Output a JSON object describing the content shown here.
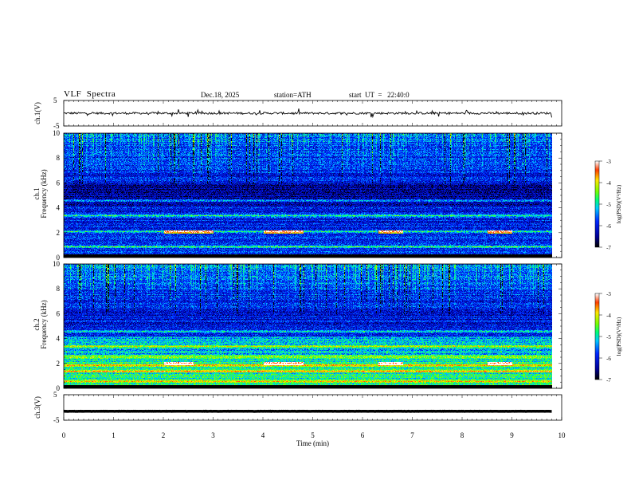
{
  "header": {
    "title": "VLF  Spectra",
    "date": "Dec.18, 2025",
    "station": "station=ATH",
    "start": "start  UT  =   22:40:0"
  },
  "chart_data": [
    {
      "type": "line",
      "panel": "ch1-waveform",
      "ylabel": "ch.1(V)",
      "ylim": [
        -5,
        5
      ],
      "yticks": [
        "5",
        "-5"
      ],
      "xlim": [
        0,
        10
      ],
      "series": [
        {
          "name": "ch.1 voltage",
          "mean": 0,
          "noise_amplitude": 0.4,
          "spike_amplitude": 1.6
        }
      ]
    },
    {
      "type": "heatmap",
      "panel": "ch1-spectrogram",
      "ylabel": "Frequency  (kHz)",
      "ylabel_channel": "ch.1",
      "ylim": [
        0,
        10
      ],
      "yticks": [
        "10",
        "8",
        "6",
        "4",
        "2",
        "0"
      ],
      "xlim": [
        0,
        9.8
      ],
      "colorbar": {
        "label": "log(PSD)(V²/Hz)",
        "range": [
          -7,
          -3
        ],
        "ticks": [
          "-3",
          "-4",
          "-5",
          "-6",
          "-7"
        ]
      },
      "bands_khz": [
        0.2,
        0.9,
        2.1,
        3.4,
        4.6
      ],
      "tone_segments_min": [
        [
          2.0,
          3.0
        ],
        [
          4.0,
          4.8
        ],
        [
          6.3,
          6.8
        ],
        [
          8.5,
          9.0
        ]
      ],
      "tone_freq_khz": 2.1
    },
    {
      "type": "heatmap",
      "panel": "ch2-spectrogram",
      "ylabel": "Frequency  (kHz)",
      "ylabel_channel": "ch.2",
      "ylim": [
        0,
        10
      ],
      "yticks": [
        "10",
        "8",
        "6",
        "4",
        "2",
        "0"
      ],
      "xlim": [
        0,
        9.8
      ],
      "colorbar": {
        "label": "log(PSD)(V²/Hz)",
        "range": [
          -7,
          -3
        ],
        "ticks": [
          "-3",
          "-4",
          "-5",
          "-6",
          "-7"
        ]
      },
      "bands_khz": [
        0.6,
        1.4,
        1.9,
        2.6,
        3.4,
        4.6
      ],
      "tone_segments_min": [
        [
          2.0,
          2.6
        ],
        [
          4.0,
          4.8
        ],
        [
          6.3,
          6.8
        ],
        [
          8.5,
          9.0
        ]
      ],
      "tone_freq_khz": 2.0
    },
    {
      "type": "line",
      "panel": "ch3-waveform",
      "ylabel": "ch.3(V)",
      "ylim": [
        -5,
        5
      ],
      "yticks": [
        "5",
        "-5"
      ],
      "xlim": [
        0,
        10
      ],
      "series": [
        {
          "name": "ch.3 voltage",
          "mean": -1.5,
          "noise_amplitude": 0.05,
          "spike_amplitude": 0
        }
      ]
    }
  ],
  "xaxis": {
    "label": "Time  (min)",
    "ticks": [
      "0",
      "1",
      "2",
      "3",
      "4",
      "5",
      "6",
      "7",
      "8",
      "9",
      "10"
    ]
  }
}
